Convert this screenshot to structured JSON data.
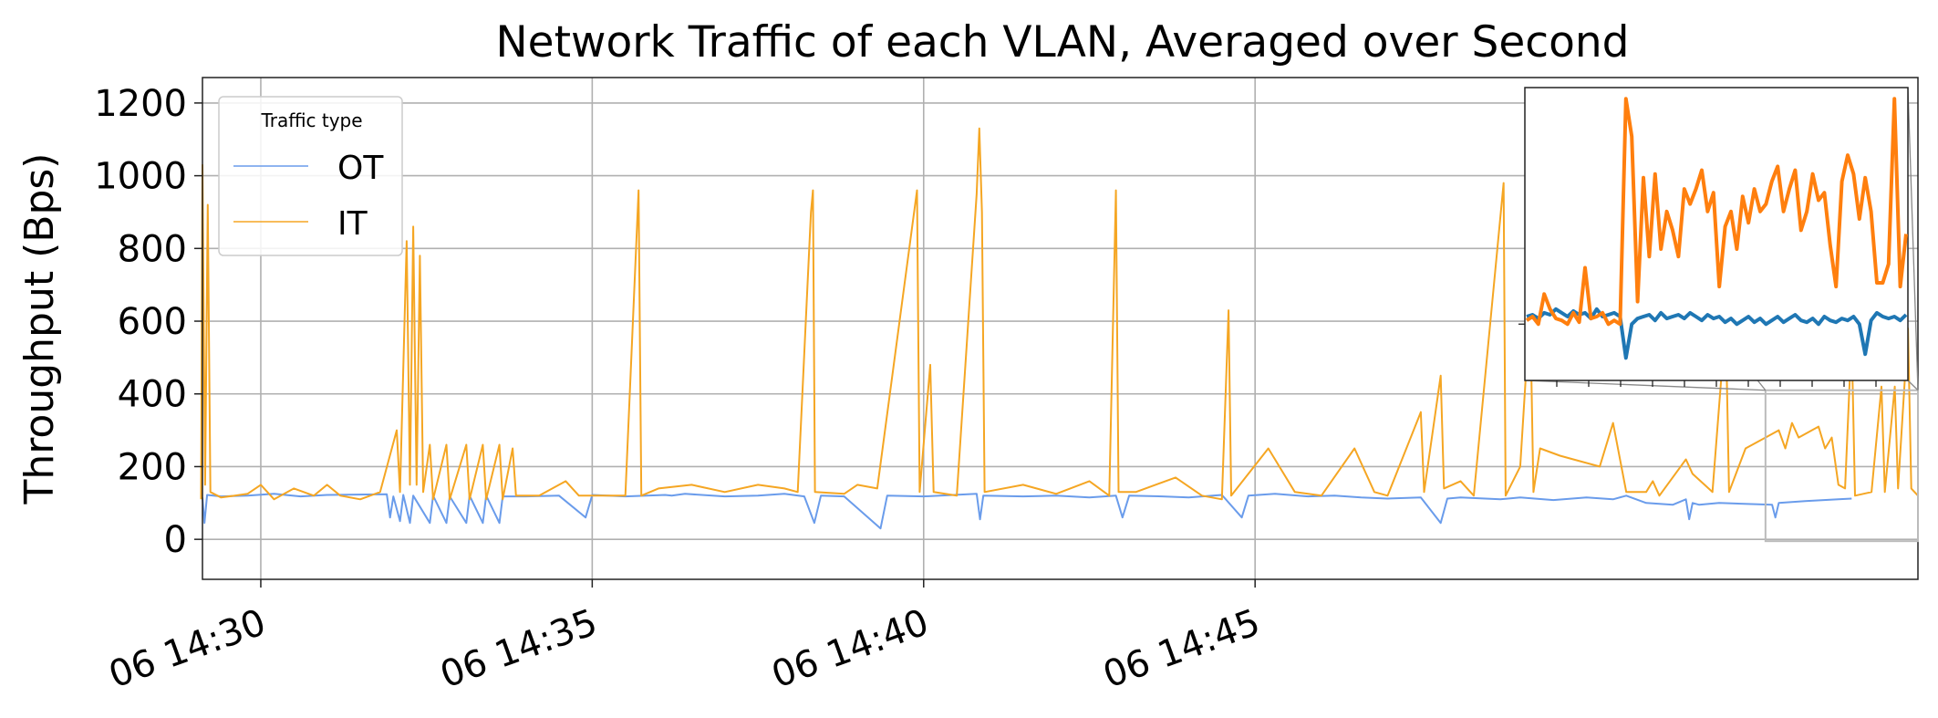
{
  "chart_data": {
    "type": "line",
    "title": "Network Traffic of each VLAN, Averaged over Second",
    "xlabel": "",
    "ylabel": "Throughput (Bps)",
    "x_range": [
      "06 14:29:07",
      "06 14:47:06"
    ],
    "x_ticks": [
      "06 14:30",
      "06 14:35",
      "06 14:40",
      "06 14:45"
    ],
    "y_ticks": [
      0,
      200,
      400,
      600,
      800,
      1000,
      1200
    ],
    "ylim": [
      -110,
      1270
    ],
    "grid": true,
    "legend": {
      "title": "Traffic type",
      "placement": "top-left"
    },
    "x_unit": "minutes after 14:29",
    "series": [
      {
        "name": "OT",
        "color": "#6a9ceb",
        "points": [
          [
            0.12,
            115
          ],
          [
            0.15,
            45
          ],
          [
            0.19,
            122
          ],
          [
            0.4,
            118
          ],
          [
            0.8,
            120
          ],
          [
            1.2,
            125
          ],
          [
            1.6,
            118
          ],
          [
            2.0,
            122
          ],
          [
            2.9,
            124
          ],
          [
            2.95,
            60
          ],
          [
            3.0,
            118
          ],
          [
            3.1,
            50
          ],
          [
            3.15,
            122
          ],
          [
            3.25,
            45
          ],
          [
            3.3,
            120
          ],
          [
            3.55,
            45
          ],
          [
            3.6,
            120
          ],
          [
            3.8,
            45
          ],
          [
            3.85,
            118
          ],
          [
            4.1,
            45
          ],
          [
            4.15,
            120
          ],
          [
            4.35,
            45
          ],
          [
            4.4,
            120
          ],
          [
            4.6,
            45
          ],
          [
            4.65,
            118
          ],
          [
            5.0,
            118
          ],
          [
            5.5,
            120
          ],
          [
            5.9,
            60
          ],
          [
            6.0,
            122
          ],
          [
            6.5,
            118
          ],
          [
            7.1,
            122
          ],
          [
            7.2,
            120
          ],
          [
            7.4,
            125
          ],
          [
            8.0,
            118
          ],
          [
            8.5,
            120
          ],
          [
            8.9,
            125
          ],
          [
            9.2,
            118
          ],
          [
            9.35,
            45
          ],
          [
            9.45,
            120
          ],
          [
            9.8,
            118
          ],
          [
            10.35,
            30
          ],
          [
            10.45,
            120
          ],
          [
            11.0,
            118
          ],
          [
            11.8,
            125
          ],
          [
            11.85,
            55
          ],
          [
            11.9,
            120
          ],
          [
            12.5,
            118
          ],
          [
            13.0,
            120
          ],
          [
            13.5,
            115
          ],
          [
            13.9,
            120
          ],
          [
            14.0,
            60
          ],
          [
            14.1,
            120
          ],
          [
            14.6,
            118
          ],
          [
            15.0,
            115
          ],
          [
            15.5,
            122
          ],
          [
            15.8,
            60
          ],
          [
            15.9,
            120
          ],
          [
            16.3,
            125
          ],
          [
            16.8,
            118
          ],
          [
            17.2,
            120
          ],
          [
            17.6,
            115
          ],
          [
            18.0,
            112
          ],
          [
            18.5,
            115
          ],
          [
            18.8,
            45
          ],
          [
            18.9,
            112
          ],
          [
            19.1,
            115
          ],
          [
            19.7,
            110
          ],
          [
            20.0,
            115
          ],
          [
            20.5,
            108
          ],
          [
            21.0,
            115
          ],
          [
            21.4,
            110
          ],
          [
            21.6,
            120
          ],
          [
            21.9,
            100
          ],
          [
            22.3,
            95
          ],
          [
            22.5,
            110
          ],
          [
            22.55,
            55
          ],
          [
            22.6,
            100
          ],
          [
            22.7,
            95
          ],
          [
            23.0,
            100
          ],
          [
            23.8,
            95
          ],
          [
            23.85,
            60
          ],
          [
            23.9,
            100
          ],
          [
            24.3,
            105
          ],
          [
            24.8,
            110
          ],
          [
            25.0,
            112
          ]
        ]
      },
      {
        "name": "IT",
        "color": "#f5a623",
        "points": [
          [
            0.1,
            110
          ],
          [
            0.12,
            1030
          ],
          [
            0.16,
            150
          ],
          [
            0.2,
            920
          ],
          [
            0.24,
            130
          ],
          [
            0.4,
            115
          ],
          [
            0.8,
            125
          ],
          [
            1.0,
            150
          ],
          [
            1.2,
            110
          ],
          [
            1.5,
            140
          ],
          [
            1.8,
            120
          ],
          [
            2.0,
            150
          ],
          [
            2.2,
            120
          ],
          [
            2.5,
            110
          ],
          [
            2.8,
            130
          ],
          [
            3.05,
            300
          ],
          [
            3.1,
            130
          ],
          [
            3.2,
            820
          ],
          [
            3.25,
            150
          ],
          [
            3.3,
            860
          ],
          [
            3.35,
            150
          ],
          [
            3.4,
            780
          ],
          [
            3.45,
            130
          ],
          [
            3.55,
            260
          ],
          [
            3.6,
            110
          ],
          [
            3.8,
            260
          ],
          [
            3.85,
            110
          ],
          [
            4.1,
            260
          ],
          [
            4.15,
            110
          ],
          [
            4.35,
            260
          ],
          [
            4.4,
            110
          ],
          [
            4.6,
            260
          ],
          [
            4.65,
            110
          ],
          [
            4.8,
            250
          ],
          [
            4.85,
            120
          ],
          [
            5.2,
            120
          ],
          [
            5.6,
            160
          ],
          [
            5.8,
            120
          ],
          [
            6.5,
            120
          ],
          [
            6.7,
            960
          ],
          [
            6.74,
            120
          ],
          [
            7.0,
            140
          ],
          [
            7.5,
            150
          ],
          [
            8.0,
            130
          ],
          [
            8.5,
            150
          ],
          [
            8.9,
            140
          ],
          [
            9.1,
            130
          ],
          [
            9.3,
            900
          ],
          [
            9.33,
            960
          ],
          [
            9.36,
            130
          ],
          [
            9.8,
            125
          ],
          [
            10.0,
            150
          ],
          [
            10.3,
            140
          ],
          [
            10.9,
            960
          ],
          [
            10.94,
            130
          ],
          [
            11.1,
            480
          ],
          [
            11.15,
            130
          ],
          [
            11.5,
            120
          ],
          [
            11.8,
            950
          ],
          [
            11.84,
            1130
          ],
          [
            11.88,
            900
          ],
          [
            11.92,
            130
          ],
          [
            12.5,
            150
          ],
          [
            13.0,
            125
          ],
          [
            13.5,
            160
          ],
          [
            13.8,
            120
          ],
          [
            13.9,
            960
          ],
          [
            13.94,
            130
          ],
          [
            14.2,
            130
          ],
          [
            14.8,
            170
          ],
          [
            15.2,
            120
          ],
          [
            15.5,
            110
          ],
          [
            15.6,
            630
          ],
          [
            15.64,
            120
          ],
          [
            16.2,
            250
          ],
          [
            16.6,
            130
          ],
          [
            17.0,
            120
          ],
          [
            17.5,
            250
          ],
          [
            17.8,
            130
          ],
          [
            18.0,
            120
          ],
          [
            18.5,
            350
          ],
          [
            18.55,
            130
          ],
          [
            18.8,
            450
          ],
          [
            18.85,
            140
          ],
          [
            19.1,
            160
          ],
          [
            19.3,
            120
          ],
          [
            19.75,
            980
          ],
          [
            19.78,
            120
          ],
          [
            20.0,
            200
          ],
          [
            20.15,
            640
          ],
          [
            20.2,
            130
          ],
          [
            20.3,
            250
          ],
          [
            20.6,
            230
          ],
          [
            20.8,
            220
          ],
          [
            21.2,
            200
          ],
          [
            21.4,
            320
          ],
          [
            21.6,
            130
          ],
          [
            21.9,
            130
          ],
          [
            22.0,
            160
          ],
          [
            22.1,
            120
          ],
          [
            22.5,
            220
          ],
          [
            22.6,
            180
          ],
          [
            22.9,
            130
          ],
          [
            23.1,
            600
          ],
          [
            23.15,
            130
          ],
          [
            23.4,
            250
          ],
          [
            23.7,
            280
          ],
          [
            23.9,
            300
          ],
          [
            24.0,
            250
          ],
          [
            24.1,
            320
          ],
          [
            24.2,
            280
          ],
          [
            24.4,
            300
          ],
          [
            24.5,
            310
          ],
          [
            24.6,
            250
          ],
          [
            24.7,
            280
          ],
          [
            24.8,
            150
          ],
          [
            24.9,
            140
          ],
          [
            25.0,
            560
          ],
          [
            25.05,
            120
          ],
          [
            25.3,
            130
          ],
          [
            25.45,
            420
          ],
          [
            25.5,
            130
          ],
          [
            25.65,
            420
          ],
          [
            25.7,
            140
          ],
          [
            25.85,
            580
          ],
          [
            25.9,
            140
          ],
          [
            26.0,
            120
          ]
        ]
      }
    ],
    "inset": {
      "zoom_x_range": [
        23.7,
        26.0
      ],
      "zoom_y_range": [
        -5,
        410
      ],
      "series": [
        {
          "name": "OT",
          "color": "#1f77b4",
          "values": [
            620,
            625,
            615,
            630,
            625,
            640,
            630,
            620,
            635,
            625,
            630,
            615,
            640,
            620,
            625,
            630,
            620,
            510,
            600,
            615,
            620,
            625,
            610,
            630,
            615,
            620,
            625,
            615,
            630,
            620,
            610,
            625,
            615,
            620,
            605,
            615,
            600,
            610,
            620,
            605,
            615,
            600,
            610,
            620,
            605,
            615,
            625,
            610,
            605,
            615,
            600,
            620,
            610,
            605,
            615,
            610,
            620,
            600,
            520,
            610,
            630,
            620,
            615,
            620,
            610,
            625
          ]
        },
        {
          "name": "IT",
          "color": "#ff7f0e",
          "values": [
            610,
            620,
            600,
            680,
            640,
            615,
            610,
            600,
            630,
            605,
            750,
            615,
            620,
            630,
            600,
            610,
            600,
            1200,
            1100,
            660,
            990,
            780,
            1000,
            800,
            900,
            850,
            780,
            960,
            920,
            960,
            1010,
            900,
            950,
            700,
            860,
            900,
            800,
            940,
            870,
            960,
            900,
            920,
            980,
            1020,
            900,
            960,
            1010,
            850,
            900,
            1000,
            930,
            950,
            810,
            700,
            980,
            1050,
            1000,
            880,
            990,
            900,
            710,
            710,
            760,
            1200,
            700,
            840
          ]
        }
      ]
    }
  }
}
